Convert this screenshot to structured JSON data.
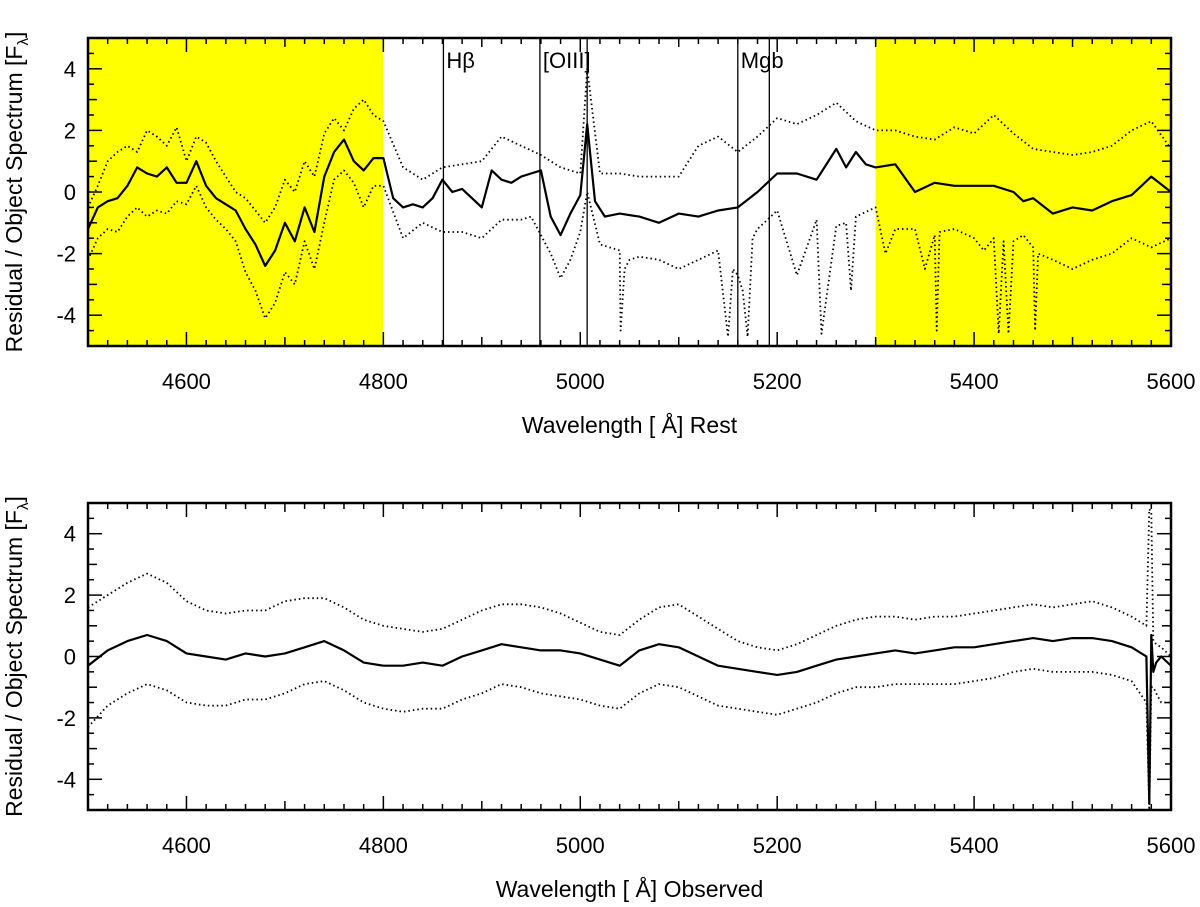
{
  "chart_data": [
    {
      "type": "line",
      "panel": "top",
      "xlabel": "Wavelength [ Å] Rest",
      "ylabel": "Residual / Object Spectrum [F",
      "ylabel_sub": "λ",
      "ylabel_close": "]",
      "xlim": [
        4500,
        5600
      ],
      "ylim": [
        -5,
        5
      ],
      "xticks": [
        4600,
        4800,
        5000,
        5200,
        5400,
        5600
      ],
      "yticks": [
        -4,
        -2,
        0,
        2,
        4
      ],
      "grid": false,
      "legend": "none",
      "highlight_color": "#ffff00",
      "highlight_ranges": [
        [
          4500,
          4800
        ],
        [
          5300,
          5600
        ]
      ],
      "annotations": [
        {
          "label": "Hβ",
          "lines": [
            4861
          ]
        },
        {
          "label": "[OIII]",
          "lines": [
            4959,
            5007
          ]
        },
        {
          "label": "Mgb",
          "lines": [
            5160,
            5192
          ]
        }
      ],
      "series": [
        {
          "style": "solid",
          "x": [
            4500,
            4510,
            4520,
            4530,
            4540,
            4550,
            4560,
            4570,
            4580,
            4590,
            4600,
            4610,
            4620,
            4630,
            4640,
            4650,
            4660,
            4670,
            4680,
            4690,
            4700,
            4710,
            4720,
            4730,
            4740,
            4750,
            4760,
            4770,
            4780,
            4790,
            4800,
            4810,
            4820,
            4830,
            4840,
            4850,
            4860,
            4870,
            4880,
            4890,
            4900,
            4910,
            4920,
            4930,
            4940,
            4950,
            4960,
            4970,
            4980,
            4990,
            5000,
            5007,
            5015,
            5025,
            5040,
            5060,
            5080,
            5100,
            5120,
            5140,
            5160,
            5180,
            5200,
            5220,
            5240,
            5260,
            5270,
            5280,
            5290,
            5300,
            5320,
            5340,
            5360,
            5380,
            5400,
            5420,
            5440,
            5450,
            5460,
            5480,
            5500,
            5520,
            5540,
            5560,
            5580,
            5600
          ],
          "y": [
            -1.2,
            -0.5,
            -0.3,
            -0.2,
            0.2,
            0.8,
            0.6,
            0.5,
            0.8,
            0.3,
            0.3,
            1.0,
            0.2,
            -0.2,
            -0.4,
            -0.6,
            -1.2,
            -1.7,
            -2.4,
            -1.9,
            -1.0,
            -1.6,
            -0.5,
            -1.3,
            0.5,
            1.3,
            1.7,
            1.0,
            0.7,
            1.1,
            1.1,
            -0.2,
            -0.5,
            -0.4,
            -0.5,
            -0.2,
            0.4,
            0.0,
            0.1,
            -0.2,
            -0.5,
            0.7,
            0.4,
            0.3,
            0.5,
            0.6,
            0.7,
            -0.8,
            -1.4,
            -0.7,
            -0.1,
            2.2,
            -0.3,
            -0.8,
            -0.7,
            -0.8,
            -1.0,
            -0.7,
            -0.8,
            -0.6,
            -0.5,
            0.0,
            0.6,
            0.6,
            0.4,
            1.4,
            0.8,
            1.3,
            0.9,
            0.8,
            0.9,
            0.0,
            0.3,
            0.2,
            0.2,
            0.2,
            0.0,
            -0.3,
            -0.2,
            -0.7,
            -0.5,
            -0.6,
            -0.3,
            -0.1,
            0.5,
            0.0
          ]
        },
        {
          "style": "dotted",
          "x": [
            4500,
            4510,
            4520,
            4530,
            4540,
            4550,
            4560,
            4570,
            4580,
            4590,
            4600,
            4610,
            4620,
            4630,
            4640,
            4650,
            4660,
            4670,
            4680,
            4690,
            4700,
            4710,
            4720,
            4730,
            4740,
            4750,
            4760,
            4770,
            4780,
            4790,
            4800,
            4820,
            4840,
            4860,
            4880,
            4900,
            4920,
            4940,
            4960,
            4980,
            5000,
            5007,
            5020,
            5040,
            5060,
            5080,
            5100,
            5120,
            5140,
            5160,
            5180,
            5200,
            5220,
            5240,
            5260,
            5280,
            5300,
            5320,
            5340,
            5360,
            5380,
            5400,
            5420,
            5440,
            5460,
            5480,
            5500,
            5520,
            5540,
            5560,
            5580,
            5600
          ],
          "y": [
            -0.5,
            0.2,
            1.0,
            1.3,
            1.5,
            1.3,
            2.0,
            1.8,
            1.5,
            2.1,
            1.0,
            1.8,
            1.6,
            1.0,
            0.5,
            0.0,
            -0.2,
            -0.6,
            -1.0,
            -0.5,
            0.4,
            0.0,
            1.0,
            0.5,
            1.9,
            2.4,
            2.0,
            2.7,
            3.0,
            2.5,
            2.3,
            0.8,
            0.4,
            0.8,
            0.9,
            1.0,
            1.8,
            1.5,
            1.2,
            0.8,
            0.6,
            4.0,
            0.6,
            0.6,
            0.5,
            0.5,
            0.5,
            1.5,
            1.8,
            1.3,
            1.8,
            2.4,
            2.2,
            2.5,
            2.9,
            2.3,
            2.0,
            2.0,
            1.8,
            1.7,
            2.1,
            1.9,
            2.5,
            1.9,
            1.4,
            1.3,
            1.2,
            1.3,
            1.5,
            2.0,
            2.3,
            1.4
          ]
        },
        {
          "style": "dotted",
          "x": [
            4500,
            4510,
            4520,
            4530,
            4540,
            4550,
            4560,
            4570,
            4580,
            4590,
            4600,
            4610,
            4620,
            4630,
            4640,
            4650,
            4660,
            4670,
            4680,
            4690,
            4700,
            4710,
            4720,
            4730,
            4740,
            4750,
            4760,
            4770,
            4780,
            4790,
            4800,
            4820,
            4840,
            4860,
            4880,
            4900,
            4920,
            4940,
            4950,
            4960,
            4970,
            4980,
            4990,
            5000,
            5007,
            5020,
            5040,
            5041,
            5045,
            5050,
            5060,
            5080,
            5100,
            5120,
            5140,
            5150,
            5155,
            5160,
            5165,
            5170,
            5175,
            5180,
            5200,
            5220,
            5240,
            5245,
            5260,
            5270,
            5275,
            5280,
            5300,
            5310,
            5320,
            5340,
            5350,
            5360,
            5362,
            5365,
            5380,
            5400,
            5410,
            5420,
            5425,
            5430,
            5435,
            5440,
            5450,
            5460,
            5462,
            5465,
            5480,
            5500,
            5520,
            5540,
            5560,
            5580,
            5600
          ],
          "y": [
            -2.2,
            -1.5,
            -1.2,
            -1.3,
            -0.8,
            -0.5,
            -0.8,
            -0.6,
            -0.7,
            -0.3,
            -0.4,
            0.2,
            -0.5,
            -0.9,
            -1.2,
            -1.6,
            -2.6,
            -3.2,
            -4.1,
            -3.6,
            -2.6,
            -3.0,
            -1.6,
            -2.5,
            -1.0,
            0.4,
            0.7,
            0.3,
            -0.5,
            0.2,
            0.2,
            -1.5,
            -1.0,
            -1.3,
            -1.3,
            -1.5,
            -0.9,
            -0.9,
            -0.8,
            -1.4,
            -2.0,
            -2.8,
            -2.2,
            -1.3,
            0.0,
            -1.7,
            -1.9,
            -4.5,
            -2.5,
            -2.2,
            -2.1,
            -2.2,
            -2.5,
            -2.2,
            -1.9,
            -4.7,
            -2.5,
            -2.7,
            -3.2,
            -4.7,
            -1.5,
            -1.2,
            -0.6,
            -2.7,
            -0.9,
            -4.6,
            -1.1,
            -1.0,
            -3.2,
            -0.8,
            -0.5,
            -2.0,
            -1.2,
            -1.2,
            -2.5,
            -1.4,
            -4.5,
            -1.3,
            -1.2,
            -1.5,
            -1.9,
            -1.5,
            -4.6,
            -1.6,
            -4.6,
            -1.6,
            -1.4,
            -1.8,
            -4.5,
            -2.0,
            -2.2,
            -2.5,
            -2.2,
            -2.0,
            -1.5,
            -1.8,
            -1.5
          ]
        }
      ]
    },
    {
      "type": "line",
      "panel": "bottom",
      "xlabel": "Wavelength [ Å] Observed",
      "ylabel": "Residual / Object Spectrum [F",
      "ylabel_sub": "λ",
      "ylabel_close": "]",
      "xlim": [
        4500,
        5600
      ],
      "ylim": [
        -5,
        5
      ],
      "xticks": [
        4600,
        4800,
        5000,
        5200,
        5400,
        5600
      ],
      "yticks": [
        -4,
        -2,
        0,
        2,
        4
      ],
      "grid": false,
      "legend": "none",
      "series": [
        {
          "style": "solid",
          "x": [
            4500,
            4520,
            4540,
            4560,
            4580,
            4600,
            4620,
            4640,
            4660,
            4680,
            4700,
            4720,
            4740,
            4760,
            4780,
            4800,
            4820,
            4840,
            4860,
            4880,
            4900,
            4920,
            4940,
            4960,
            4980,
            5000,
            5020,
            5040,
            5060,
            5080,
            5100,
            5120,
            5140,
            5160,
            5180,
            5200,
            5220,
            5240,
            5260,
            5280,
            5300,
            5320,
            5340,
            5360,
            5380,
            5400,
            5420,
            5440,
            5460,
            5480,
            5500,
            5520,
            5540,
            5560,
            5575,
            5578,
            5580,
            5582,
            5585,
            5590,
            5600
          ],
          "y": [
            -0.3,
            0.2,
            0.5,
            0.7,
            0.5,
            0.1,
            0.0,
            -0.1,
            0.1,
            0.0,
            0.1,
            0.3,
            0.5,
            0.2,
            -0.2,
            -0.3,
            -0.3,
            -0.2,
            -0.3,
            0.0,
            0.2,
            0.4,
            0.3,
            0.2,
            0.2,
            0.1,
            -0.1,
            -0.3,
            0.2,
            0.4,
            0.3,
            0.0,
            -0.3,
            -0.4,
            -0.5,
            -0.6,
            -0.5,
            -0.3,
            -0.1,
            0.0,
            0.1,
            0.2,
            0.1,
            0.2,
            0.3,
            0.3,
            0.4,
            0.5,
            0.6,
            0.5,
            0.6,
            0.6,
            0.5,
            0.3,
            0.0,
            -4.8,
            0.7,
            -0.5,
            -0.2,
            0.0,
            -0.3
          ]
        },
        {
          "style": "dotted",
          "x": [
            4500,
            4520,
            4540,
            4560,
            4580,
            4600,
            4620,
            4640,
            4660,
            4680,
            4700,
            4720,
            4740,
            4760,
            4780,
            4800,
            4820,
            4840,
            4860,
            4880,
            4900,
            4920,
            4940,
            4960,
            4980,
            5000,
            5020,
            5040,
            5060,
            5080,
            5100,
            5120,
            5140,
            5160,
            5180,
            5200,
            5220,
            5240,
            5260,
            5280,
            5300,
            5320,
            5340,
            5360,
            5380,
            5400,
            5420,
            5440,
            5460,
            5480,
            5500,
            5520,
            5540,
            5560,
            5575,
            5578,
            5580,
            5582,
            5585,
            5590,
            5600
          ],
          "y": [
            1.6,
            2.0,
            2.4,
            2.7,
            2.4,
            1.8,
            1.5,
            1.4,
            1.5,
            1.5,
            1.8,
            1.9,
            1.9,
            1.6,
            1.2,
            1.0,
            0.9,
            0.8,
            0.9,
            1.2,
            1.5,
            1.7,
            1.7,
            1.6,
            1.4,
            1.1,
            0.8,
            0.7,
            1.2,
            1.6,
            1.7,
            1.3,
            0.9,
            0.5,
            0.3,
            0.2,
            0.4,
            0.7,
            1.0,
            1.2,
            1.3,
            1.3,
            1.2,
            1.3,
            1.3,
            1.4,
            1.5,
            1.6,
            1.7,
            1.6,
            1.7,
            1.8,
            1.6,
            1.3,
            1.0,
            4.8,
            4.7,
            0.5,
            0.4,
            0.3,
            0.0
          ]
        },
        {
          "style": "dotted",
          "x": [
            4500,
            4520,
            4540,
            4560,
            4580,
            4600,
            4620,
            4640,
            4660,
            4680,
            4700,
            4720,
            4740,
            4760,
            4780,
            4800,
            4820,
            4840,
            4860,
            4880,
            4900,
            4920,
            4940,
            4960,
            4980,
            5000,
            5020,
            5040,
            5060,
            5080,
            5100,
            5120,
            5140,
            5160,
            5180,
            5200,
            5220,
            5240,
            5260,
            5280,
            5300,
            5320,
            5340,
            5360,
            5380,
            5400,
            5420,
            5440,
            5460,
            5480,
            5500,
            5520,
            5540,
            5560,
            5575,
            5578,
            5580,
            5582,
            5585,
            5590,
            5600
          ],
          "y": [
            -2.3,
            -1.6,
            -1.2,
            -0.9,
            -1.1,
            -1.5,
            -1.6,
            -1.6,
            -1.4,
            -1.4,
            -1.2,
            -0.9,
            -0.8,
            -1.1,
            -1.5,
            -1.7,
            -1.8,
            -1.7,
            -1.7,
            -1.4,
            -1.2,
            -0.9,
            -1.0,
            -1.2,
            -1.3,
            -1.4,
            -1.6,
            -1.7,
            -1.2,
            -0.9,
            -1.0,
            -1.3,
            -1.6,
            -1.7,
            -1.8,
            -1.9,
            -1.7,
            -1.5,
            -1.2,
            -1.0,
            -1.0,
            -0.9,
            -0.9,
            -0.9,
            -0.9,
            -0.8,
            -0.7,
            -0.5,
            -0.4,
            -0.5,
            -0.5,
            -0.5,
            -0.6,
            -0.8,
            -1.5,
            -5.0,
            -1.0,
            -1.0,
            -1.2,
            -1.5,
            -1.5
          ]
        }
      ]
    }
  ]
}
